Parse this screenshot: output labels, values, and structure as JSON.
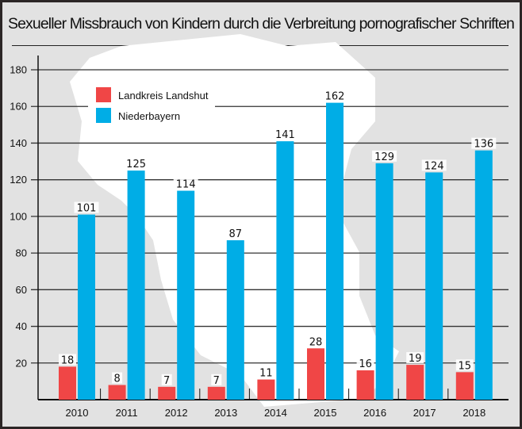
{
  "chart_data": {
    "type": "bar",
    "title": "Sexueller Missbrauch von Kindern durch die Verbreitung pornografischer Schriften",
    "xlabel": "",
    "ylabel": "",
    "ylim": [
      0,
      180
    ],
    "yticks": [
      20,
      40,
      60,
      80,
      100,
      120,
      140,
      160,
      180
    ],
    "grid": true,
    "legend_position": "top-left",
    "categories": [
      "2010",
      "2011",
      "2012",
      "2013",
      "2014",
      "2015",
      "2016",
      "2017",
      "2018"
    ],
    "series": [
      {
        "name": "Landkreis Landshut",
        "color": "#f04646",
        "values": [
          18,
          8,
          7,
          7,
          11,
          28,
          16,
          19,
          15
        ]
      },
      {
        "name": "Niederbayern",
        "color": "#00ade6",
        "values": [
          101,
          125,
          114,
          87,
          141,
          162,
          129,
          124,
          136
        ]
      }
    ]
  }
}
